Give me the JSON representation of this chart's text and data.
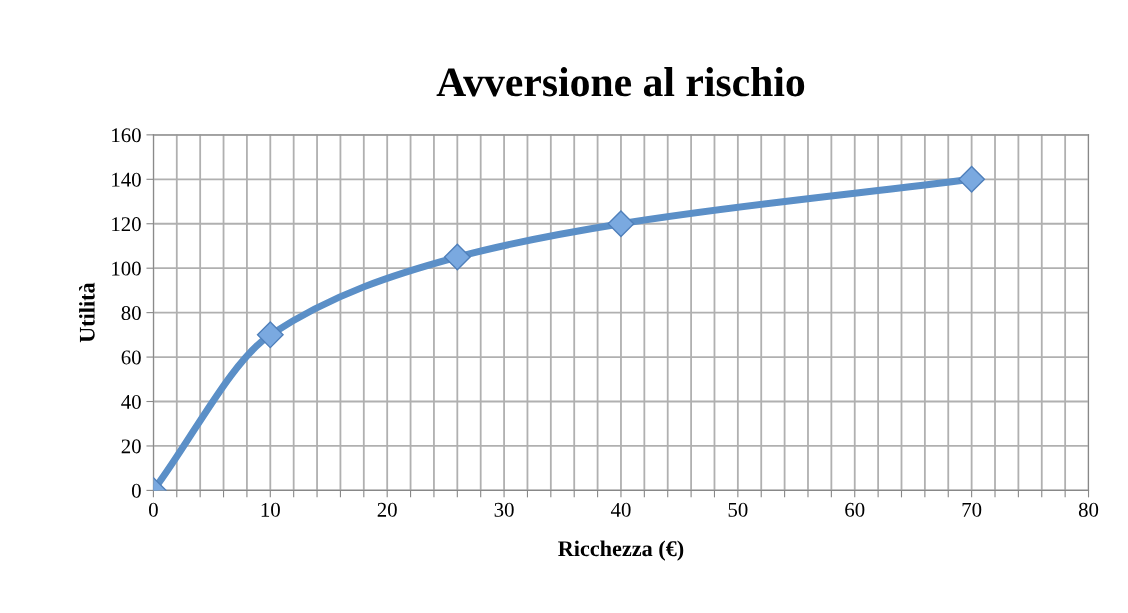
{
  "chart_data": {
    "type": "line",
    "title": "Avversione al rischio",
    "xlabel": "Ricchezza (€)",
    "ylabel": "Utilità",
    "x": [
      0,
      10,
      26,
      40,
      70
    ],
    "series": [
      {
        "color": "#5b8fc7",
        "values": [
          0,
          70,
          105,
          120,
          140
        ]
      }
    ],
    "xlim": [
      0,
      80
    ],
    "xticks": [
      0,
      {
        "value": 2,
        "label": null
      },
      {
        "value": 4,
        "label": null
      },
      {
        "value": 6,
        "label": null
      },
      {
        "value": 8,
        "label": null
      },
      10,
      {
        "value": 12,
        "label": null
      },
      {
        "value": 14,
        "label": null
      },
      {
        "value": 16,
        "label": null
      },
      {
        "value": 18,
        "label": null
      },
      20,
      {
        "value": 22,
        "label": null
      },
      {
        "value": 24,
        "label": null
      },
      {
        "value": 26,
        "label": null
      },
      {
        "value": 28,
        "label": null
      },
      30,
      {
        "value": 32,
        "label": null
      },
      {
        "value": 34,
        "label": null
      },
      {
        "value": 36,
        "label": null
      },
      {
        "value": 38,
        "label": null
      },
      40,
      {
        "value": 42,
        "label": null
      },
      {
        "value": 44,
        "label": null
      },
      {
        "value": 46,
        "label": null
      },
      {
        "value": 48,
        "label": null
      },
      50,
      {
        "value": 52,
        "label": null
      },
      {
        "value": 54,
        "label": null
      },
      {
        "value": 56,
        "label": null
      },
      {
        "value": 58,
        "label": null
      },
      60,
      {
        "value": 62,
        "label": null
      },
      {
        "value": 64,
        "label": null
      },
      {
        "value": 66,
        "label": null
      },
      {
        "value": 68,
        "label": null
      },
      70,
      {
        "value": 72,
        "label": null
      },
      {
        "value": 74,
        "label": null
      },
      {
        "value": 76,
        "label": null
      },
      {
        "value": 78,
        "label": null
      },
      80
    ],
    "ylim": [
      0,
      160
    ],
    "yticks": [
      0,
      20,
      40,
      60,
      80,
      100,
      120,
      140,
      160
    ],
    "grid": true,
    "marker": "diamond",
    "line_style": "solid"
  }
}
